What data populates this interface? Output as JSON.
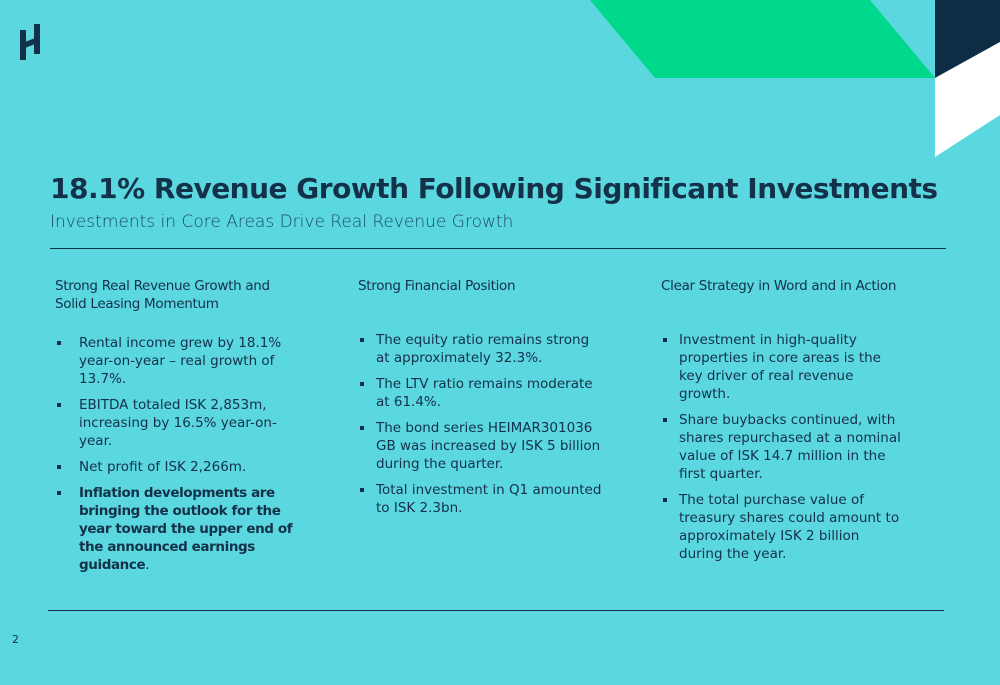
{
  "header": {
    "title": "18.1% Revenue Growth Following Significant Investments",
    "subtitle": "Investments in Core Areas Drive Real Revenue Growth"
  },
  "columns": [
    {
      "heading": "Strong Real Revenue Growth and Solid Leasing Momentum",
      "bullets": [
        {
          "text": "Rental income grew by 18.1% year-on-year – real growth of 13.7%."
        },
        {
          "text": "EBITDA totaled ISK 2,853m, increasing by 16.5% year-on-year."
        },
        {
          "text": "Net profit of ISK 2,266m."
        },
        {
          "bold": "Inflation developments are bringing the outlook for the year toward the upper end of the announced earnings guidance",
          "text": "."
        }
      ]
    },
    {
      "heading": "Strong Financial Position",
      "bullets": [
        {
          "text": "The equity ratio remains strong at approximately 32.3%."
        },
        {
          "text": "The LTV ratio remains moderate at 61.4%."
        },
        {
          "text": "The bond series HEIMAR301036 GB was increased by ISK 5 billion during the quarter."
        },
        {
          "text": "Total investment in Q1 amounted to ISK 2.3bn."
        }
      ]
    },
    {
      "heading": "Clear Strategy in Word and in Action",
      "bullets": [
        {
          "text": "Investment in high-quality properties in core areas is the key driver of real revenue growth."
        },
        {
          "text": "Share buybacks continued, with shares repurchased at a nominal value of ISK 14.7 million in the first quarter."
        },
        {
          "text": "The total purchase value of treasury shares could amount to approximately ISK 2 billion during the year."
        }
      ]
    }
  ],
  "page_number": "2"
}
